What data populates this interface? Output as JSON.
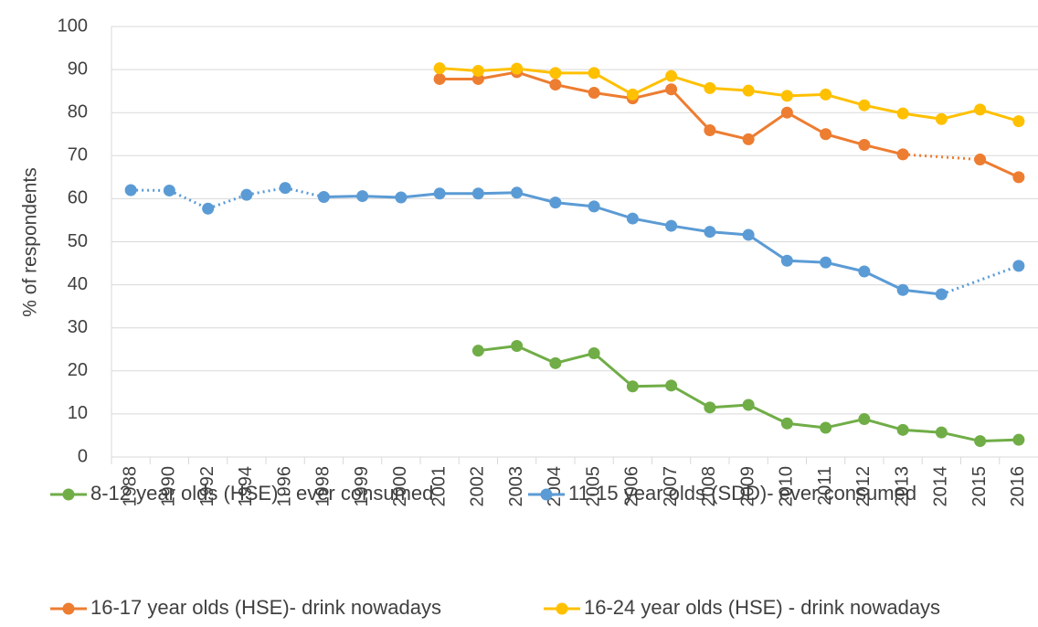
{
  "chart_data": {
    "type": "line",
    "y_label": "% of respondents",
    "categories": [
      "1988",
      "1990",
      "1992",
      "1994",
      "1996",
      "1998",
      "1999",
      "2000",
      "2001",
      "2002",
      "2003",
      "2004",
      "2005",
      "2006",
      "2007",
      "2008",
      "2009",
      "2010",
      "2011",
      "2012",
      "2013",
      "2014",
      "2015",
      "2016"
    ],
    "series": [
      {
        "name": "8-12 year olds (HSE) - ever consumed",
        "color": "#70ad47",
        "values": [
          null,
          null,
          null,
          null,
          null,
          null,
          null,
          null,
          null,
          24.7,
          25.8,
          21.8,
          24.1,
          16.4,
          16.6,
          11.5,
          12.1,
          7.8,
          6.8,
          8.8,
          6.3,
          5.7,
          3.7,
          4.0
        ]
      },
      {
        "name": "11-15 year olds (SDD)- ever consumed",
        "color": "#5b9bd5",
        "values": [
          62.0,
          61.9,
          57.7,
          60.9,
          62.5,
          60.4,
          60.6,
          60.3,
          61.2,
          61.2,
          61.4,
          59.1,
          58.2,
          55.4,
          53.7,
          52.3,
          51.6,
          45.6,
          45.2,
          43.1,
          38.8,
          37.8,
          null,
          44.4
        ]
      },
      {
        "name": "16-17 year olds (HSE)- drink nowadays",
        "color": "#ed7d31",
        "values": [
          null,
          null,
          null,
          null,
          null,
          null,
          null,
          null,
          87.8,
          87.8,
          89.4,
          86.5,
          84.6,
          83.3,
          85.4,
          75.9,
          73.8,
          80.0,
          75.0,
          72.5,
          70.3,
          null,
          69.1,
          65.0
        ]
      },
      {
        "name": "16-24 year olds (HSE) - drink nowadays",
        "color": "#ffc000",
        "values": [
          null,
          null,
          null,
          null,
          null,
          null,
          null,
          null,
          90.3,
          89.7,
          90.2,
          89.2,
          89.2,
          84.2,
          88.5,
          85.7,
          85.1,
          83.9,
          84.2,
          81.7,
          79.8,
          78.5,
          80.7,
          78.0
        ]
      }
    ],
    "ylim": [
      0,
      100
    ],
    "yticks": [
      0,
      10,
      20,
      30,
      40,
      50,
      60,
      70,
      80,
      90,
      100
    ],
    "grid": true
  }
}
